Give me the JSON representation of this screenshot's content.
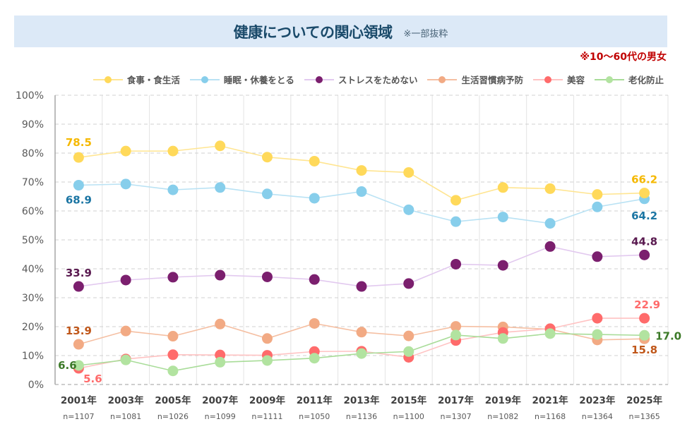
{
  "header": {
    "title": "健康についての関心領域",
    "subtitle": "※一部抜粋",
    "note": "※10〜60代の男女"
  },
  "chart_data": {
    "type": "line",
    "title": "健康についての関心領域",
    "subtitle": "※一部抜粋",
    "annotation": "※10〜60代の男女",
    "xlabel": "",
    "ylabel": "",
    "ylim": [
      0,
      100
    ],
    "y_ticks": [
      "0%",
      "10%",
      "20%",
      "30%",
      "40%",
      "50%",
      "60%",
      "70%",
      "80%",
      "90%",
      "100%"
    ],
    "grid": true,
    "legend_position": "top-right",
    "categories": [
      "2001年",
      "2003年",
      "2005年",
      "2007年",
      "2009年",
      "2011年",
      "2013年",
      "2015年",
      "2017年",
      "2019年",
      "2021年",
      "2023年",
      "2025年"
    ],
    "sample_sizes": [
      "n=1107",
      "n=1081",
      "n=1026",
      "n=1099",
      "n=1111",
      "n=1050",
      "n=1136",
      "n=1100",
      "n=1307",
      "n=1082",
      "n=1168",
      "n=1364",
      "n=1365"
    ],
    "series": [
      {
        "name": "食事・食生活",
        "color": "#ffd95a",
        "line_color": "#ffe591",
        "label_color": "#f5b800",
        "values": [
          78.5,
          80.7,
          80.7,
          82.5,
          78.6,
          77.2,
          74.0,
          73.3,
          63.7,
          68.1,
          67.7,
          65.7,
          66.2
        ],
        "labels": {
          "first": "78.5",
          "last": "66.2"
        }
      },
      {
        "name": "睡眠・休養をとる",
        "color": "#87ceeb",
        "line_color": "#b9e2f4",
        "label_color": "#1b75a3",
        "values": [
          68.9,
          69.3,
          67.3,
          68.1,
          65.9,
          64.4,
          66.7,
          60.4,
          56.3,
          57.9,
          55.7,
          61.4,
          64.2
        ],
        "labels": {
          "first": "68.9",
          "last": "64.2"
        }
      },
      {
        "name": "ストレスをためない",
        "color": "#7b1f6e",
        "line_color": "#e2c9ef",
        "label_color": "#5a1a50",
        "values": [
          33.9,
          36.1,
          37.1,
          37.8,
          37.2,
          36.3,
          33.9,
          34.9,
          41.6,
          41.2,
          47.7,
          44.2,
          44.8
        ],
        "labels": {
          "first": "33.9",
          "last": "44.8"
        }
      },
      {
        "name": "生活習慣病予防",
        "color": "#f2aa84",
        "line_color": "#f5bfa2",
        "label_color": "#c0571a",
        "values": [
          13.9,
          18.5,
          16.7,
          20.9,
          15.9,
          21.1,
          18.1,
          16.8,
          20.1,
          19.9,
          19.1,
          15.4,
          15.8
        ],
        "labels": {
          "first": "13.9",
          "last": "15.8"
        }
      },
      {
        "name": "美容",
        "color": "#ff6b6b",
        "line_color": "#ffc2c2",
        "label_color": "#ff6b6b",
        "values": [
          5.6,
          8.8,
          10.3,
          10.2,
          10.1,
          11.4,
          11.5,
          9.4,
          15.2,
          18.0,
          19.3,
          22.9,
          22.9
        ],
        "labels": {
          "first": "5.6",
          "last": "22.9"
        }
      },
      {
        "name": "老化防止",
        "color": "#b2e3a0",
        "line_color": "#a8dc98",
        "label_color": "#3c7a28",
        "values": [
          6.6,
          8.5,
          4.7,
          7.7,
          8.3,
          9.1,
          10.7,
          11.4,
          17.1,
          15.9,
          17.6,
          17.3,
          17.0
        ],
        "labels": {
          "first": "6.6",
          "last": "17.0"
        }
      }
    ]
  }
}
